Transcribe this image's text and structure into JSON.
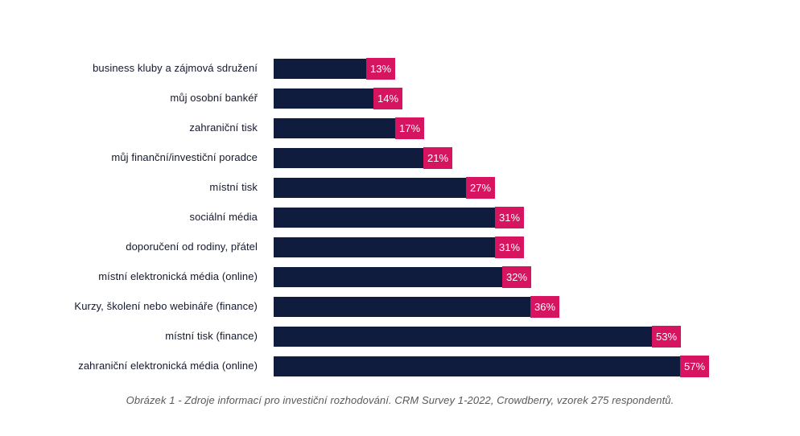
{
  "chart_data": {
    "type": "bar",
    "orientation": "horizontal",
    "title": "",
    "xlabel": "",
    "ylabel": "",
    "xlim": [
      0,
      60
    ],
    "grid": false,
    "legend": false,
    "value_suffix": "%",
    "categories": [
      "business kluby a zájmová sdružení",
      "můj osobní bankéř",
      "zahraniční tisk",
      "můj finanční/investiční poradce",
      "místní tisk",
      "sociální média",
      "doporučení od rodiny, přátel",
      "místní elektronická média (online)",
      "Kurzy, školení nebo webináře (finance)",
      "místní tisk (finance)",
      "zahraniční elektronická média (online)"
    ],
    "values": [
      13,
      14,
      17,
      21,
      27,
      31,
      31,
      32,
      36,
      53,
      57
    ]
  },
  "caption": "Obrázek 1 - Zdroje informací pro investiční rozhodování. CRM Survey 1-2022, Crowdberry, vzorek 275 respondentů.",
  "colors": {
    "bar": "#101C3D",
    "badge": "#D6145F",
    "badge_text": "#FFFFFF",
    "label_text": "#14182C",
    "caption_text": "#595959",
    "background": "#FFFFFF"
  }
}
